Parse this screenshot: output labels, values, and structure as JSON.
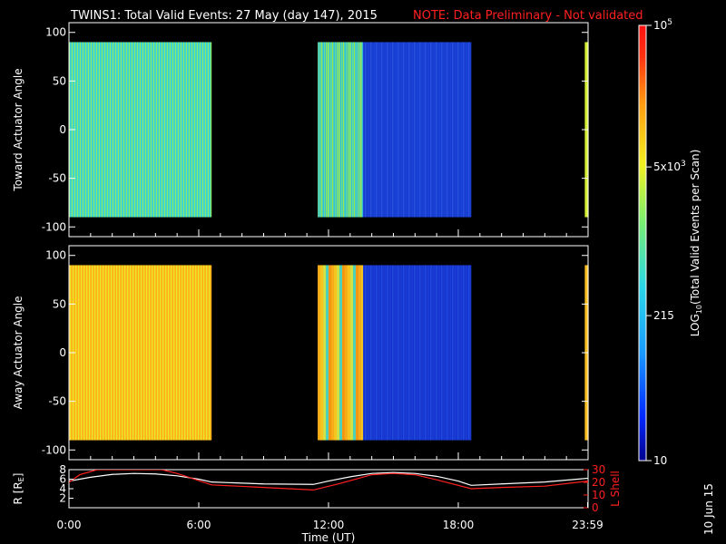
{
  "header": {
    "title": "TWINS1: Total Valid Events: 27 May (day 147), 2015",
    "note": "NOTE: Data Preliminary - Not validated"
  },
  "chart_data": [
    {
      "type": "heatmap",
      "panel": "top",
      "ylabel": "Toward Actuator Angle",
      "ylim": [
        -110,
        110
      ],
      "yticks": [
        "100",
        "50",
        "0",
        "-50",
        "-100"
      ],
      "xlim_hours": [
        0,
        24
      ],
      "data_y_range": [
        -90,
        90
      ],
      "segments": [
        {
          "start": 0.0,
          "end": 6.6,
          "colors": [
            "#8ee86a",
            "#3de0b0",
            "#36d7c8",
            "#3ad2d8",
            "#2cc8e0",
            "#38d4cc",
            "#40d8c0"
          ]
        },
        {
          "start": 11.5,
          "end": 13.6,
          "colors": [
            "#a4ee50",
            "#70e890",
            "#46d8c4",
            "#34c4e8"
          ]
        },
        {
          "start": 13.6,
          "end": 18.6,
          "colors": [
            "#1a3ae0",
            "#1842d8",
            "#1c48e0",
            "#1a40dc",
            "#2a5ae8",
            "#1c46dc"
          ]
        },
        {
          "start": 23.85,
          "end": 24.0,
          "colors": [
            "#d8f030"
          ]
        }
      ]
    },
    {
      "type": "heatmap",
      "panel": "bottom",
      "ylabel": "Away Actuator Angle",
      "ylim": [
        -110,
        110
      ],
      "yticks": [
        "100",
        "50",
        "0",
        "-50",
        "-100"
      ],
      "xlim_hours": [
        0,
        24
      ],
      "data_y_range": [
        -90,
        90
      ],
      "segments": [
        {
          "start": 0.0,
          "end": 6.6,
          "colors": [
            "#ffb01a",
            "#ffc81c",
            "#f4dc24",
            "#e8e82a",
            "#f0e030",
            "#ffd020",
            "#ffc01c"
          ]
        },
        {
          "start": 11.5,
          "end": 13.6,
          "colors": [
            "#ff9c10",
            "#ffb41a",
            "#ffcc20",
            "#d8e848",
            "#50d8c0"
          ]
        },
        {
          "start": 13.6,
          "end": 18.6,
          "colors": [
            "#1630e0",
            "#1a3ad8",
            "#1c42dc",
            "#1a3cd8",
            "#2450e4",
            "#1a3edc"
          ]
        },
        {
          "start": 23.85,
          "end": 24.0,
          "colors": [
            "#ffc020"
          ]
        }
      ]
    },
    {
      "type": "line",
      "panel": "orbit",
      "ylabel_left": "R [RE]",
      "ylabel_right": "L Shell",
      "yticks_left": [
        "8",
        "6",
        "4",
        "2"
      ],
      "yticks_right": [
        "30",
        "20",
        "10",
        "0"
      ],
      "ylim_left": [
        0,
        8
      ],
      "ylim_right": [
        0,
        30
      ],
      "xlabel": "Time (UT)",
      "xticks": [
        "0:00",
        "6:00",
        "12:00",
        "18:00",
        "23:59"
      ],
      "series": [
        {
          "axis": "left",
          "color": "#ffffff",
          "x": [
            0,
            1,
            2,
            3,
            4,
            5,
            6,
            6.6,
            9,
            11.3,
            12,
            13,
            14,
            15,
            16,
            17,
            18,
            18.6,
            20,
            22,
            24
          ],
          "y": [
            5.6,
            6.4,
            7.0,
            7.2,
            7.1,
            6.7,
            6.0,
            5.4,
            5.0,
            4.9,
            5.6,
            6.5,
            7.2,
            7.4,
            7.2,
            6.6,
            5.6,
            4.7,
            5.0,
            5.4,
            6.2
          ]
        },
        {
          "axis": "right",
          "color": "#ff2020",
          "x": [
            0,
            0.5,
            1.3,
            4.3,
            5.0,
            6.6,
            9,
            11.3,
            12.5,
            14,
            15,
            16,
            17,
            18.6,
            20,
            22,
            24
          ],
          "y": [
            20,
            26,
            30,
            30,
            27,
            18,
            16,
            14,
            19,
            26,
            27,
            26,
            22,
            15,
            16,
            17,
            21
          ]
        }
      ]
    }
  ],
  "colorbar": {
    "label": "LOG10(Total Valid Events per Scan)",
    "ticks": [
      "10",
      "215",
      "5x10^3",
      "10^5"
    ],
    "tick_values": [
      10,
      215,
      5000,
      100000
    ],
    "range": [
      10,
      100000
    ],
    "scale": "log"
  },
  "footer": {
    "date_stamp": "10 Jun 15"
  }
}
